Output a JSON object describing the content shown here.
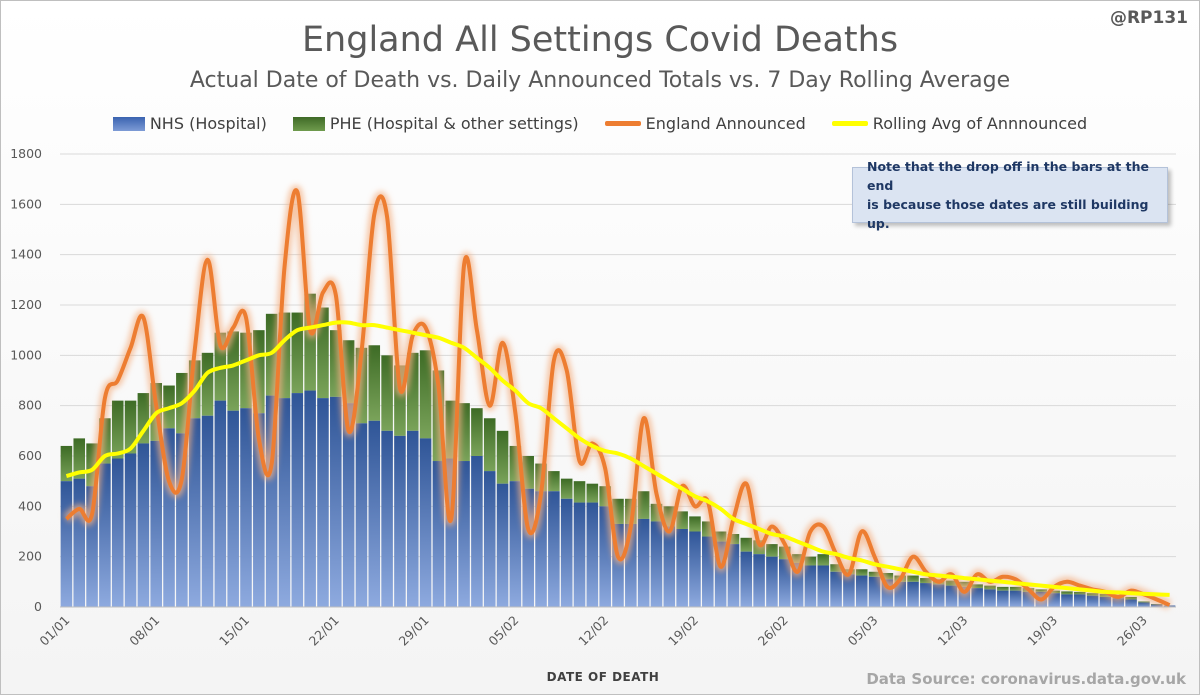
{
  "header": {
    "handle": "@RP131",
    "title": "England All Settings Covid Deaths",
    "subtitle": "Actual Date of Death vs. Daily Announced Totals vs. 7 Day Rolling Average"
  },
  "legend": [
    {
      "label": "NHS (Hospital)",
      "color": "#4472c4"
    },
    {
      "label": "PHE (Hospital & other settings)",
      "color": "#548235"
    },
    {
      "label": "England Announced",
      "color": "#ed7d31"
    },
    {
      "label": "Rolling Avg of Annnounced",
      "color": "#ffff00"
    }
  ],
  "note": {
    "line1": "Note that the drop off in the bars at the end",
    "line2": "is because those dates are still building up."
  },
  "source": "Data Source: coronavirus.data.gov.uk",
  "chart_data": {
    "type": "bar",
    "xlabel": "DATE OF DEATH",
    "ylabel": "",
    "ylim": [
      0,
      1800
    ],
    "y_ticks": [
      0,
      200,
      400,
      600,
      800,
      1000,
      1200,
      1400,
      1600,
      1800
    ],
    "x_tick_labels": [
      "01/01",
      "08/01",
      "15/01",
      "22/01",
      "29/01",
      "05/02",
      "12/02",
      "19/02",
      "26/02",
      "05/03",
      "12/03",
      "19/03",
      "26/03"
    ],
    "x_tick_every": 7,
    "grid": "horizontal",
    "legend_position": "top",
    "series": [
      {
        "name": "NHS (Hospital)",
        "kind": "bar",
        "values": [
          500,
          510,
          480,
          570,
          590,
          610,
          650,
          660,
          710,
          690,
          750,
          760,
          820,
          780,
          790,
          770,
          840,
          830,
          850,
          860,
          830,
          835,
          810,
          730,
          740,
          700,
          680,
          700,
          670,
          580,
          590,
          580,
          600,
          540,
          490,
          500,
          470,
          460,
          460,
          430,
          415,
          415,
          400,
          330,
          330,
          350,
          340,
          320,
          310,
          300,
          280,
          260,
          250,
          220,
          210,
          200,
          190,
          175,
          165,
          165,
          140,
          130,
          125,
          120,
          110,
          100,
          100,
          95,
          90,
          85,
          80,
          75,
          70,
          65,
          65,
          60,
          60,
          55,
          50,
          50,
          45,
          40,
          35,
          30,
          18,
          10,
          6
        ]
      },
      {
        "name": "PHE (Hospital & other settings)",
        "kind": "bar",
        "stack": true,
        "values": [
          640,
          670,
          650,
          750,
          820,
          820,
          850,
          890,
          880,
          930,
          980,
          1010,
          1090,
          1095,
          1090,
          1100,
          1165,
          1170,
          1170,
          1245,
          1190,
          1100,
          1060,
          1030,
          1040,
          1000,
          960,
          1010,
          1020,
          940,
          820,
          810,
          790,
          750,
          700,
          640,
          600,
          570,
          540,
          510,
          500,
          490,
          480,
          430,
          430,
          460,
          410,
          400,
          380,
          360,
          340,
          300,
          290,
          275,
          265,
          250,
          240,
          210,
          200,
          210,
          170,
          150,
          150,
          140,
          135,
          125,
          125,
          115,
          110,
          105,
          100,
          90,
          85,
          80,
          80,
          75,
          70,
          65,
          62,
          60,
          55,
          52,
          45,
          40,
          22,
          12,
          6
        ]
      },
      {
        "name": "England Announced",
        "kind": "line",
        "values": [
          350,
          390,
          370,
          830,
          900,
          1030,
          1150,
          800,
          500,
          510,
          1020,
          1380,
          1040,
          1110,
          1150,
          670,
          570,
          1350,
          1650,
          1100,
          1250,
          1240,
          700,
          1010,
          1560,
          1550,
          870,
          1080,
          1110,
          880,
          350,
          1360,
          1100,
          800,
          1050,
          770,
          310,
          450,
          980,
          940,
          580,
          650,
          550,
          200,
          320,
          750,
          450,
          300,
          480,
          400,
          420,
          160,
          350,
          490,
          250,
          320,
          250,
          140,
          300,
          320,
          210,
          130,
          300,
          200,
          80,
          110,
          200,
          140,
          100,
          130,
          60,
          130,
          100,
          120,
          110,
          70,
          30,
          80,
          100,
          85,
          70,
          60,
          40,
          65,
          50,
          30,
          8
        ]
      },
      {
        "name": "Rolling Avg of Annnounced",
        "kind": "line",
        "values": [
          520,
          535,
          545,
          600,
          610,
          630,
          700,
          770,
          790,
          810,
          860,
          930,
          950,
          960,
          980,
          1000,
          1010,
          1060,
          1100,
          1110,
          1120,
          1130,
          1130,
          1120,
          1120,
          1110,
          1100,
          1090,
          1080,
          1070,
          1050,
          1030,
          990,
          950,
          900,
          860,
          810,
          790,
          750,
          710,
          670,
          640,
          620,
          610,
          590,
          560,
          530,
          500,
          470,
          440,
          420,
          390,
          350,
          330,
          310,
          290,
          280,
          260,
          240,
          220,
          210,
          195,
          185,
          170,
          160,
          150,
          140,
          130,
          125,
          120,
          115,
          110,
          105,
          100,
          95,
          90,
          85,
          80,
          75,
          70,
          65,
          60,
          58,
          55,
          52,
          50,
          48
        ]
      }
    ]
  }
}
